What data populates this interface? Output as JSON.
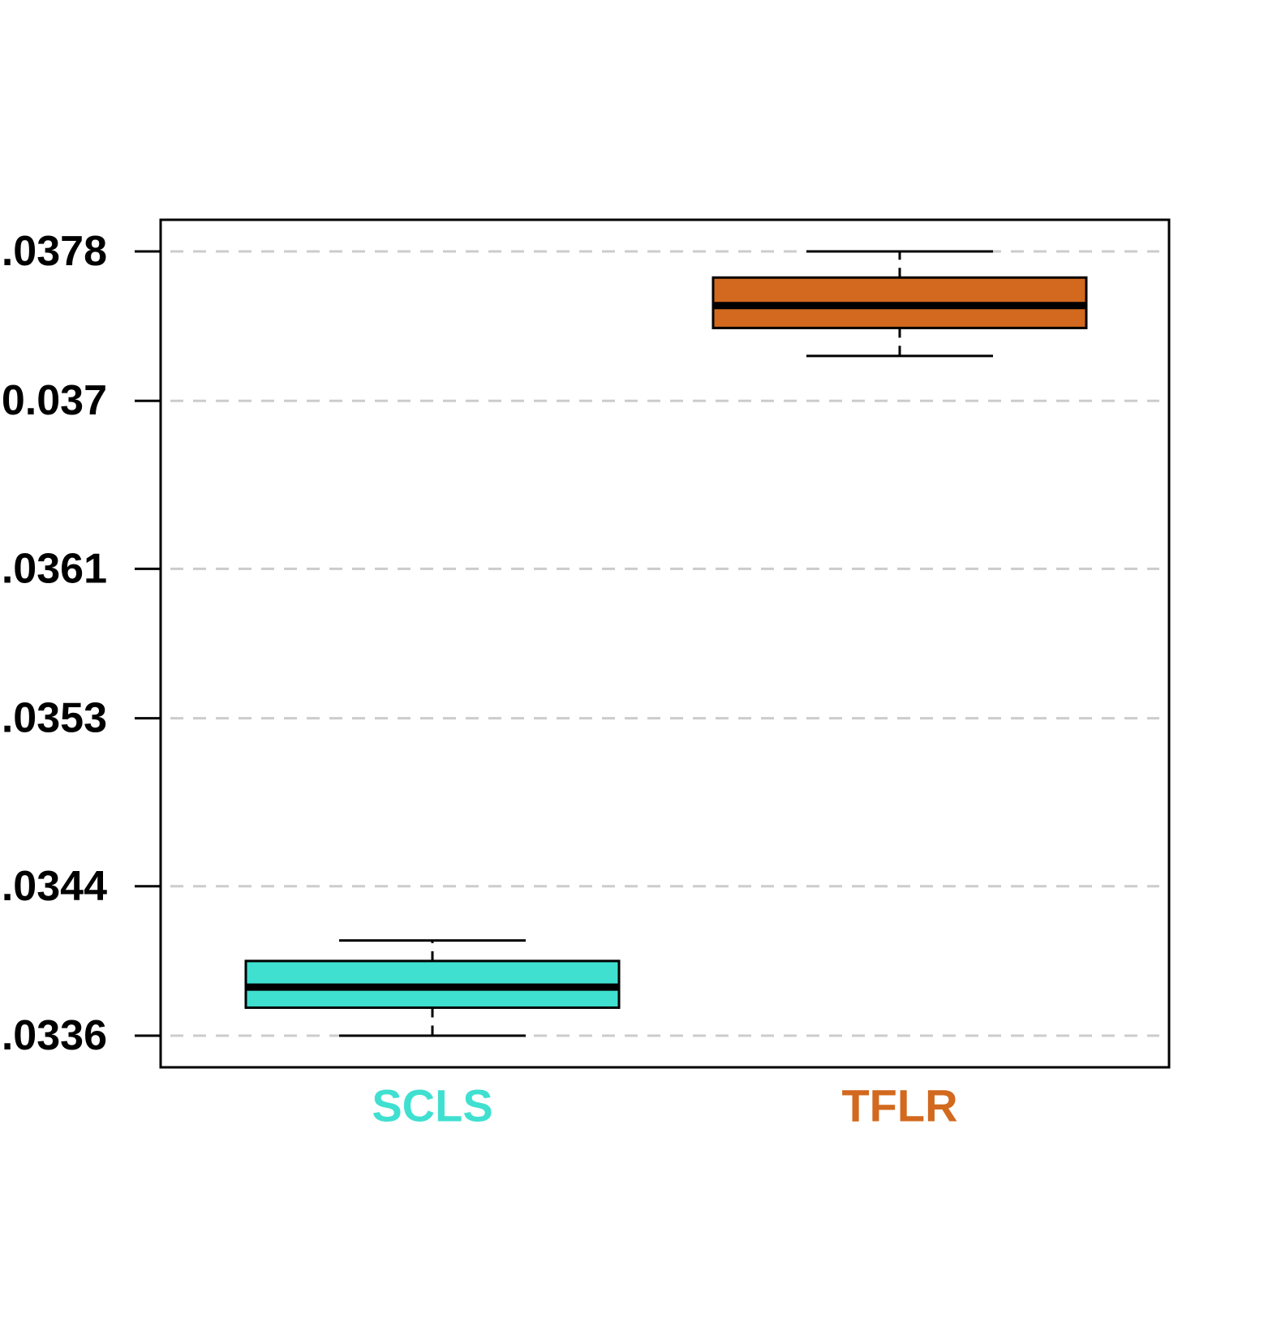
{
  "chart_data": {
    "type": "box",
    "title": "",
    "xlabel": "",
    "ylabel": "",
    "ylim": [
      0.03352,
      0.03784
    ],
    "grid": true,
    "y_ticks": [
      {
        "value": 0.0336,
        "label": ".0336"
      },
      {
        "value": 0.0344,
        "label": ".0344"
      },
      {
        "value": 0.0353,
        "label": ".0353"
      },
      {
        "value": 0.0361,
        "label": ".0361"
      },
      {
        "value": 0.037,
        "label": "0.037"
      },
      {
        "value": 0.0378,
        "label": ".0378"
      }
    ],
    "categories": [
      "SCLS",
      "TFLR"
    ],
    "boxes": [
      {
        "category": "SCLS",
        "color": "#40E0D0",
        "whisker_low": 0.0336,
        "q1": 0.03375,
        "median": 0.03386,
        "q3": 0.034,
        "whisker_high": 0.03411
      },
      {
        "category": "TFLR",
        "color": "#D2691E",
        "whisker_low": 0.03724,
        "q1": 0.03739,
        "median": 0.03751,
        "q3": 0.03766,
        "whisker_high": 0.0378
      }
    ]
  }
}
